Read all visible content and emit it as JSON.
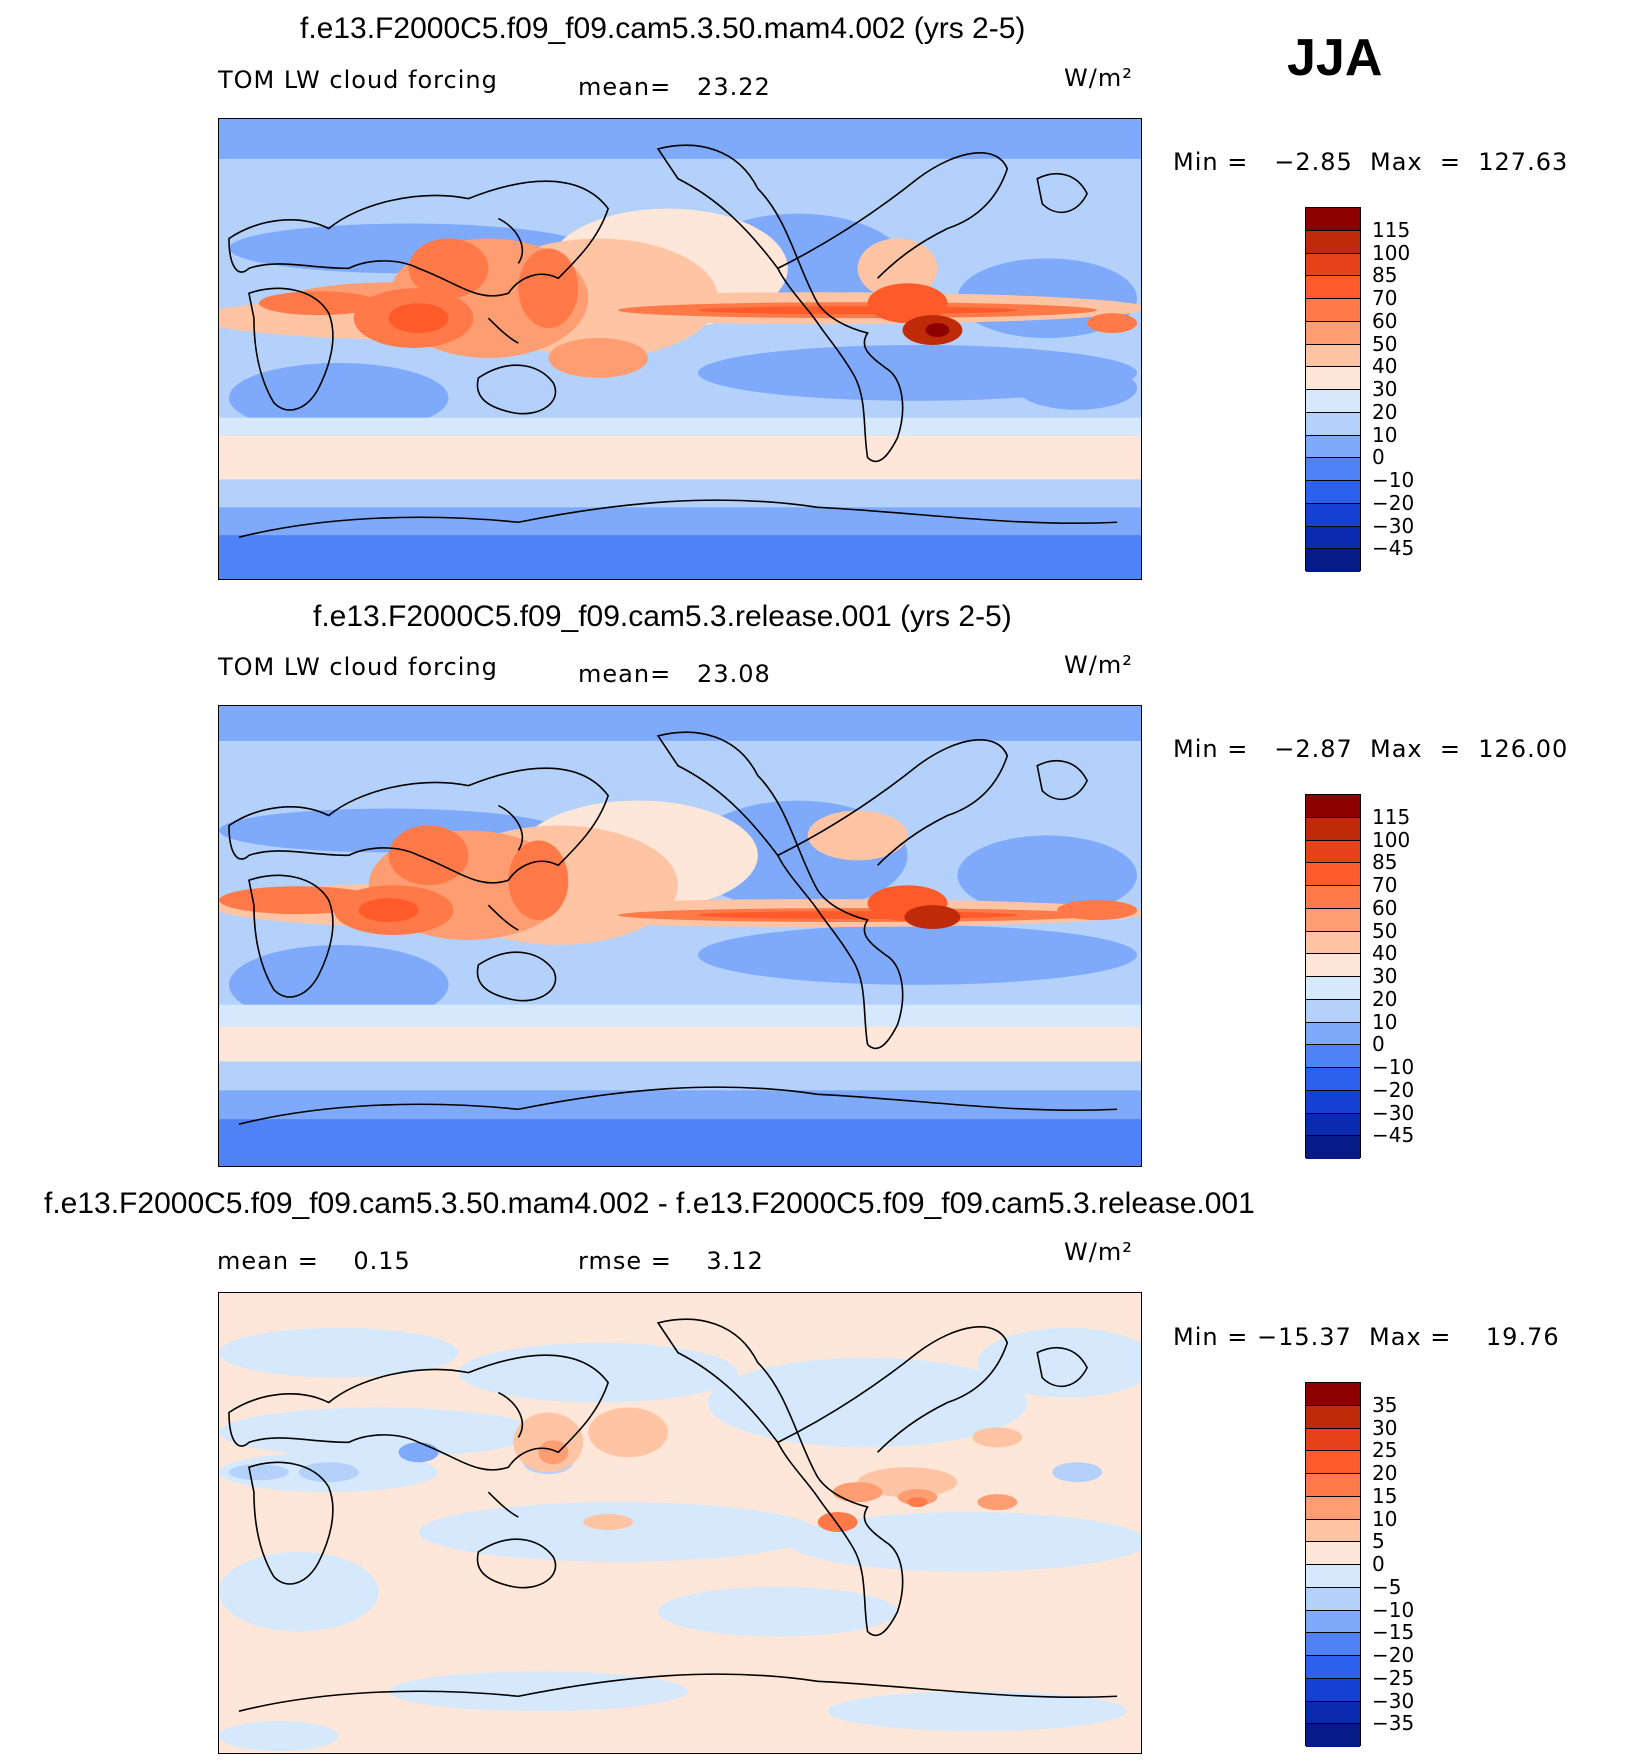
{
  "season": "JJA",
  "units": "W/m²",
  "panels": [
    {
      "title": "f.e13.F2000C5.f09_f09.cam5.3.50.mam4.002 (yrs 2-5)",
      "variable": "TOM LW cloud forcing",
      "stat1": "mean=   23.22",
      "minmax": "Min =   −2.85  Max  =  127.63",
      "levels": [
        "115",
        "100",
        "85",
        "70",
        "60",
        "50",
        "40",
        "30",
        "20",
        "10",
        "0",
        "−10",
        "−20",
        "−30",
        "−45"
      ],
      "colors": [
        "#8c0000",
        "#bf2a08",
        "#e64119",
        "#ff5a2a",
        "#ff7a48",
        "#ff9d72",
        "#ffc4a4",
        "#fee7d8",
        "#d6e8fb",
        "#b4d1fb",
        "#7fa9fa",
        "#4f83f5",
        "#2c61ee",
        "#1441d2",
        "#0a2bb0",
        "#061a88"
      ]
    },
    {
      "title": "f.e13.F2000C5.f09_f09.cam5.3.release.001 (yrs 2-5)",
      "variable": "TOM LW cloud forcing",
      "stat1": "mean=   23.08",
      "minmax": "Min =   −2.87  Max  =  126.00",
      "levels": [
        "115",
        "100",
        "85",
        "70",
        "60",
        "50",
        "40",
        "30",
        "20",
        "10",
        "0",
        "−10",
        "−20",
        "−30",
        "−45"
      ],
      "colors": [
        "#8c0000",
        "#bf2a08",
        "#e64119",
        "#ff5a2a",
        "#ff7a48",
        "#ff9d72",
        "#ffc4a4",
        "#fee7d8",
        "#d6e8fb",
        "#b4d1fb",
        "#7fa9fa",
        "#4f83f5",
        "#2c61ee",
        "#1441d2",
        "#0a2bb0",
        "#061a88"
      ]
    },
    {
      "title": "f.e13.F2000C5.f09_f09.cam5.3.50.mam4.002 - f.e13.F2000C5.f09_f09.cam5.3.release.001",
      "stat1": "mean =    0.15",
      "stat2": "rmse =    3.12",
      "minmax": "Min = −15.37  Max =    19.76",
      "levels": [
        "35",
        "30",
        "25",
        "20",
        "15",
        "10",
        "5",
        "0",
        "−5",
        "−10",
        "−15",
        "−20",
        "−25",
        "−30",
        "−35"
      ],
      "colors": [
        "#8c0000",
        "#bf2a08",
        "#e64119",
        "#ff5a2a",
        "#ff7a48",
        "#ff9d72",
        "#ffc4a4",
        "#fee7d8",
        "#d6e8fb",
        "#b4d1fb",
        "#7fa9fa",
        "#4f83f5",
        "#2c61ee",
        "#1441d2",
        "#0a2bb0",
        "#061a88"
      ]
    }
  ]
}
